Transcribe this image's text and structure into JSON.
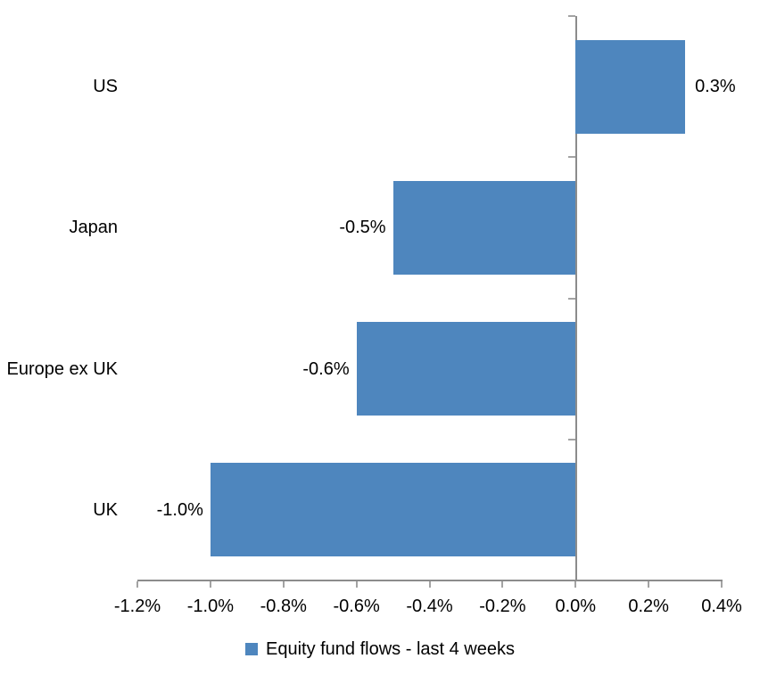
{
  "chart_data": {
    "type": "bar",
    "orientation": "horizontal",
    "title": "",
    "xlabel": "",
    "ylabel": "",
    "categories": [
      "US",
      "Japan",
      "Europe ex UK",
      "UK"
    ],
    "values": [
      0.3,
      -0.5,
      -0.6,
      -1.0
    ],
    "data_labels": [
      "0.3%",
      "-0.5%",
      "-0.6%",
      "-1.0%"
    ],
    "xlim": [
      -1.2,
      0.4
    ],
    "x_ticks": [
      -1.2,
      -1.0,
      -0.8,
      -0.6,
      -0.4,
      -0.2,
      0.0,
      0.2,
      0.4
    ],
    "x_tick_labels": [
      "-1.2%",
      "-1.0%",
      "-0.8%",
      "-0.6%",
      "-0.4%",
      "-0.2%",
      "0.0%",
      "0.2%",
      "0.4%"
    ],
    "grid": false,
    "legend_position": "bottom",
    "legend_label": "Equity fund flows - last 4 weeks",
    "colors": {
      "bar": "#4E86BE",
      "axis_line": "#8C8C8C",
      "tick": "#A3A3A3",
      "text": "#000000",
      "background": "#FFFFFF"
    }
  }
}
